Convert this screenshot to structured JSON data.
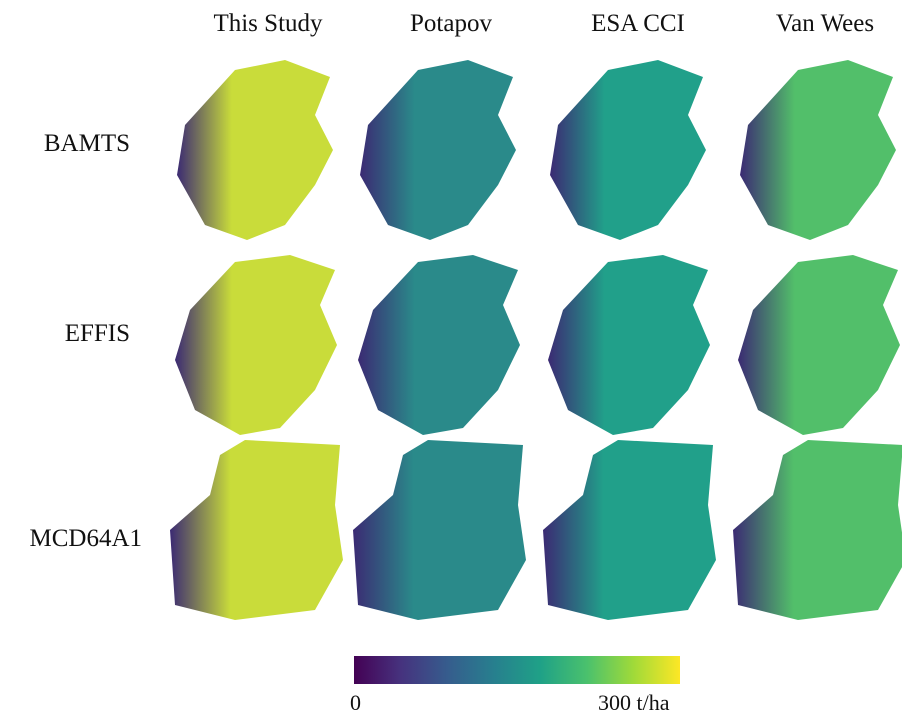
{
  "columns": [
    "This Study",
    "Potapov",
    "ESA CCI",
    "Van Wees"
  ],
  "rows": [
    "BAMTS",
    "EFFIS",
    "MCD64A1"
  ],
  "colorbar": {
    "min_label": "0",
    "max_label": "300 t/ha",
    "colormap": "viridis",
    "colors": [
      "#440154",
      "#46327e",
      "#365c8d",
      "#277f8e",
      "#1fa187",
      "#4ac16d",
      "#a0da39",
      "#fde725"
    ]
  },
  "panel_fill": {
    "This Study": "#c9dc3a",
    "Potapov": "#2a8a8a",
    "ESA CCI": "#21a08a",
    "Van Wees": "#52bf6a"
  }
}
